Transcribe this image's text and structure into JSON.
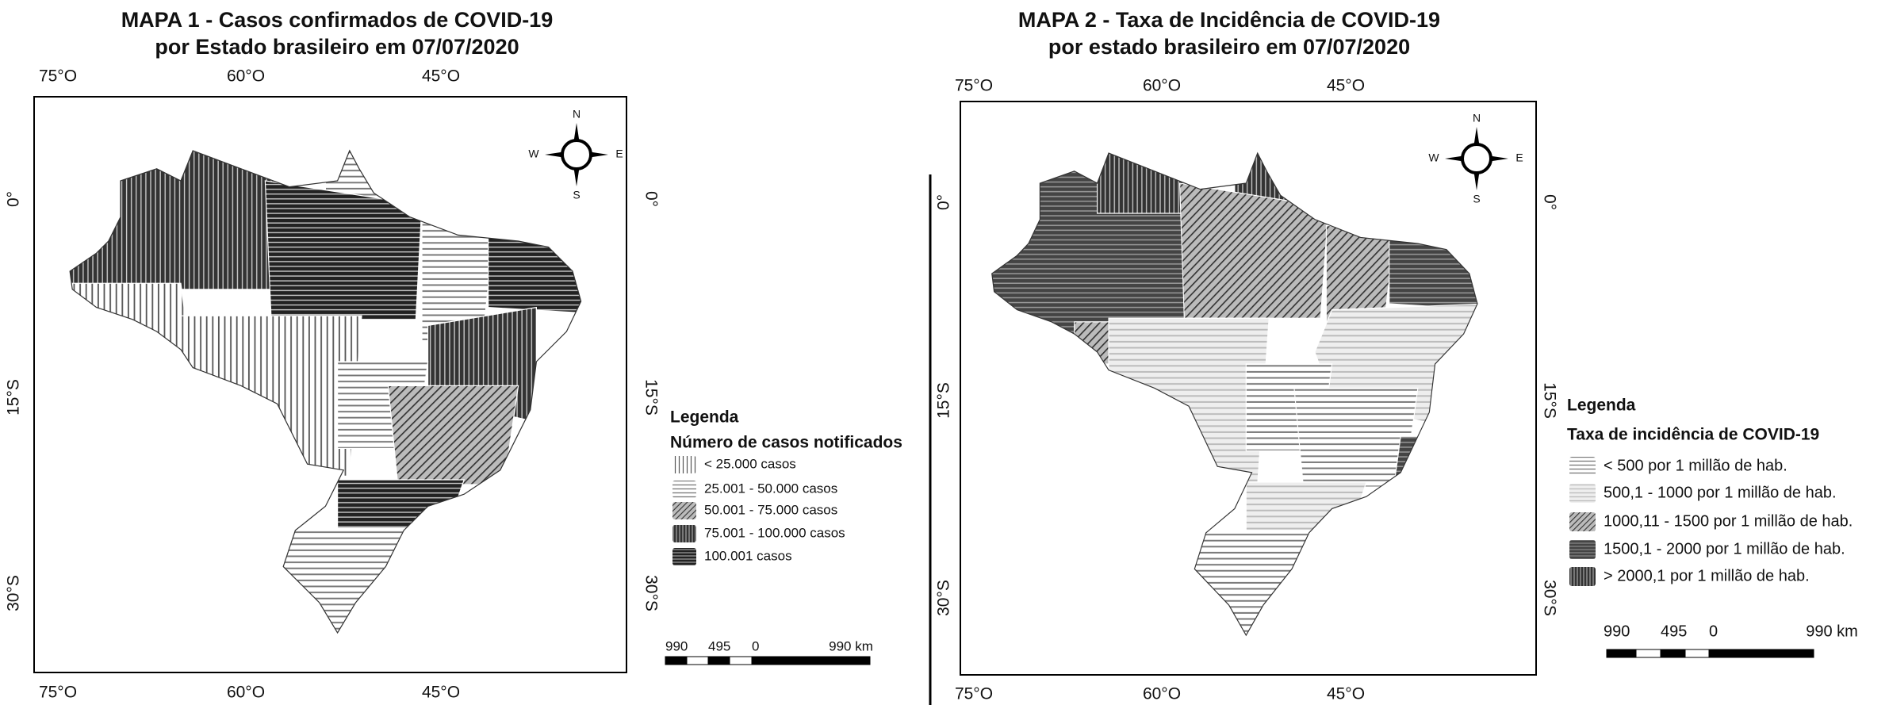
{
  "maps": [
    {
      "title": [
        "MAPA 1 - Casos confirmados de COVID-19",
        "por Estado brasileiro em 07/07/2020"
      ],
      "lon_labels": [
        "75°O",
        "60°O",
        "45°O"
      ],
      "lat_labels": [
        "0°",
        "15°S",
        "30°S"
      ],
      "compass": {
        "n": "N",
        "s": "S",
        "e": "E",
        "w": "W"
      },
      "legend": {
        "title": "Legenda",
        "subtitle": "Número de casos notificados",
        "items": [
          "< 25.000 casos",
          "25.001 - 50.000 casos",
          "50.001 - 75.000 casos",
          "75.001 - 100.000 casos",
          "100.001 casos"
        ]
      },
      "scale_bar": [
        "990",
        "495",
        "0",
        "990 km"
      ]
    },
    {
      "title": [
        "MAPA 2 - Taxa de Incidência de COVID-19",
        "por estado brasileiro em 07/07/2020"
      ],
      "lon_labels": [
        "75°O",
        "60°O",
        "45°O"
      ],
      "lat_labels": [
        "0°",
        "15°S",
        "30°S"
      ],
      "compass": {
        "n": "N",
        "s": "S",
        "e": "E",
        "w": "W"
      },
      "legend": {
        "title": "Legenda",
        "subtitle": "Taxa de incidência de COVID-19",
        "items": [
          "< 500 por 1 millão de hab.",
          "500,1 - 1000 por 1 millão de hab.",
          "1000,11 - 1500 por 1 millão de hab.",
          "1500,1 - 2000 por 1 millão de hab.",
          "> 2000,1  por 1 millão de hab."
        ]
      },
      "scale_bar": [
        "990",
        "495",
        "0",
        "990 km"
      ]
    }
  ]
}
